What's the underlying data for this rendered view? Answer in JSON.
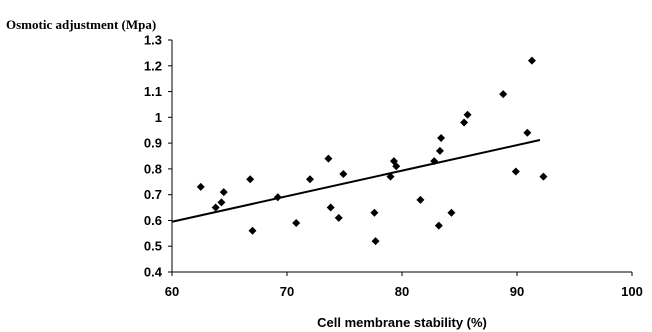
{
  "chart_data": {
    "type": "scatter",
    "title": "",
    "xlabel": "Cell membrane stability (%)",
    "ylabel": "Osmotic adjustment (Mpa)",
    "xlim": [
      60,
      100
    ],
    "ylim": [
      0.4,
      1.3
    ],
    "x_ticks": [
      "60",
      "70",
      "80",
      "90",
      "100"
    ],
    "y_ticks": [
      "0.4",
      "0.5",
      "0.6",
      "0.7",
      "0.8",
      "0.9",
      "1",
      "1.1",
      "1.2",
      "1.3"
    ],
    "grid": false,
    "legend": false,
    "marker": "diamond",
    "series": [
      {
        "x": [
          62.5,
          63.8,
          64.3,
          64.5,
          66.8,
          67.0,
          69.2,
          70.8,
          72.0,
          73.6,
          73.8,
          74.5,
          74.9,
          77.6,
          77.7,
          79.0,
          79.3,
          79.5,
          81.6,
          82.8,
          83.2,
          83.3,
          83.4,
          84.3,
          85.4,
          85.7,
          88.8,
          89.9,
          90.9,
          91.3,
          92.3
        ],
        "y": [
          0.73,
          0.65,
          0.67,
          0.71,
          0.76,
          0.56,
          0.69,
          0.59,
          0.76,
          0.84,
          0.65,
          0.61,
          0.78,
          0.63,
          0.52,
          0.77,
          0.83,
          0.81,
          0.68,
          0.83,
          0.58,
          0.87,
          0.92,
          0.63,
          0.98,
          1.01,
          1.09,
          0.79,
          0.94,
          1.22,
          0.77
        ]
      }
    ],
    "trendline": {
      "x": [
        60,
        92
      ],
      "y": [
        0.595,
        0.912
      ]
    }
  }
}
